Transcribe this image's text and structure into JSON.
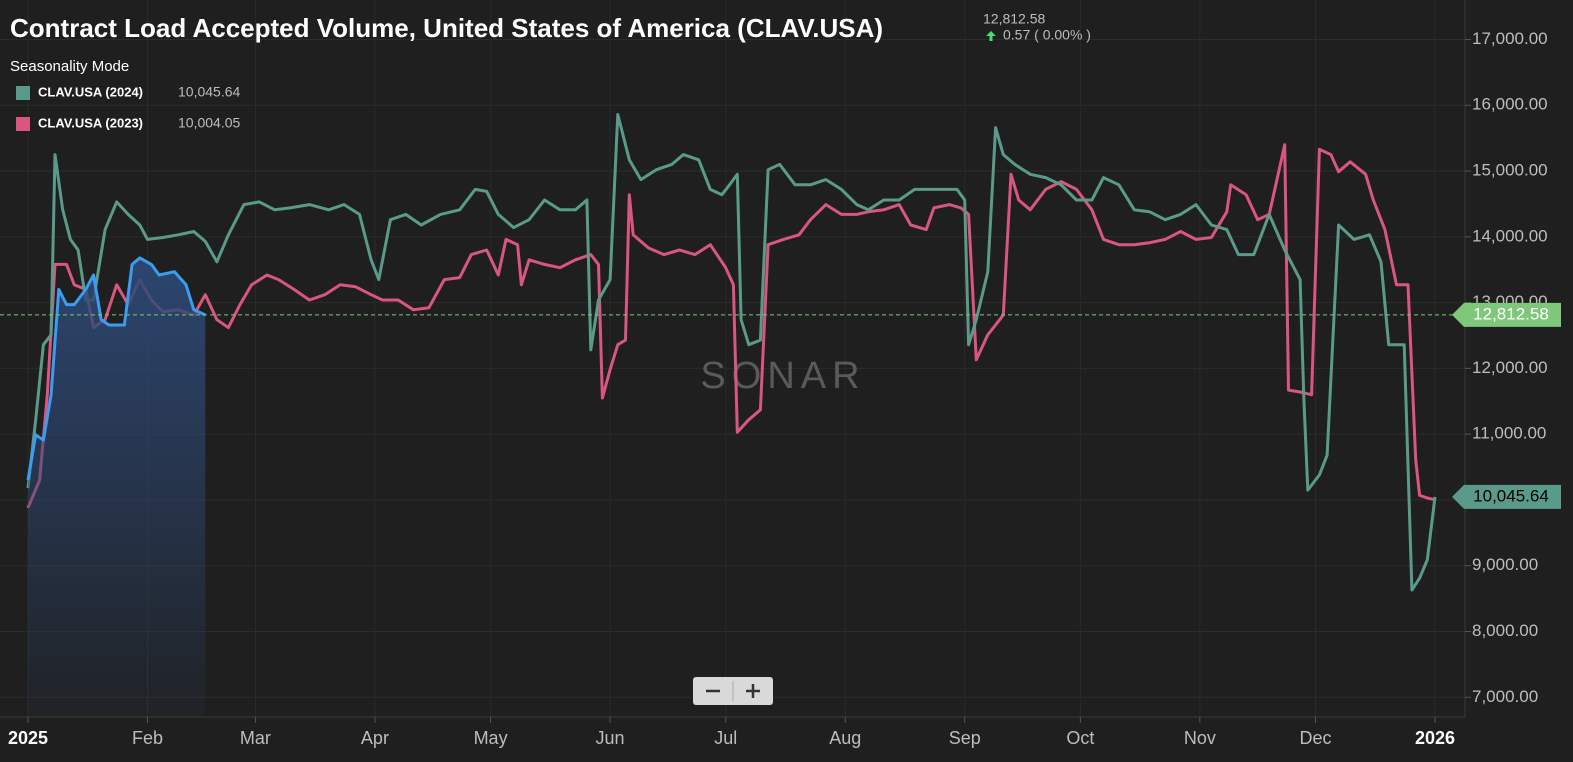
{
  "chart_data": {
    "type": "line",
    "title": "Contract Load Accepted Volume, United States of America (CLAV.USA)",
    "current_price": "12,812.58",
    "change": "0.57 ( 0.00% )",
    "mode_label": "Seasonality Mode",
    "watermark": "SONAR",
    "xlim": [
      0,
      365
    ],
    "xticks": [
      {
        "value": 0,
        "label": "2025"
      },
      {
        "value": 31,
        "label": "Feb"
      },
      {
        "value": 59,
        "label": "Mar"
      },
      {
        "value": 90,
        "label": "Apr"
      },
      {
        "value": 120,
        "label": "May"
      },
      {
        "value": 151,
        "label": "Jun"
      },
      {
        "value": 181,
        "label": "Jul"
      },
      {
        "value": 212,
        "label": "Aug"
      },
      {
        "value": 243,
        "label": "Sep"
      },
      {
        "value": 273,
        "label": "Oct"
      },
      {
        "value": 304,
        "label": "Nov"
      },
      {
        "value": 334,
        "label": "Dec"
      },
      {
        "value": 365,
        "label": "2026"
      }
    ],
    "ylim": [
      6700,
      17600
    ],
    "yticks": [
      {
        "value": 7000,
        "label": "7,000.00"
      },
      {
        "value": 8000,
        "label": "8,000.00"
      },
      {
        "value": 9000,
        "label": "9,000.00"
      },
      {
        "value": 10000,
        "label": "10,000.00"
      },
      {
        "value": 11000,
        "label": "11,000.00"
      },
      {
        "value": 12000,
        "label": "12,000.00"
      },
      {
        "value": 13000,
        "label": "13,000.00"
      },
      {
        "value": 14000,
        "label": "14,000.00"
      },
      {
        "value": 15000,
        "label": "15,000.00"
      },
      {
        "value": 16000,
        "label": "16,000.00"
      },
      {
        "value": 17000,
        "label": "17,000.00"
      }
    ],
    "grid": true,
    "reference_line": {
      "value": 12812.58,
      "label": "12,812.58",
      "color": "#7fc77a"
    },
    "series": [
      {
        "name": "CLAV.USA (2024)",
        "color": "#5a9a8a",
        "legend_value": "10,045.64",
        "show_badge": true,
        "x": [
          0,
          2,
          4,
          6,
          7,
          9,
          11,
          13,
          15,
          17,
          20,
          23,
          26,
          29,
          31,
          35,
          39,
          43,
          46,
          49,
          52,
          56,
          60,
          64,
          68,
          73,
          78,
          82,
          86,
          89,
          91,
          94,
          98,
          102,
          107,
          112,
          116,
          119,
          122,
          126,
          130,
          134,
          138,
          142,
          145,
          146,
          148,
          151,
          153,
          156,
          159,
          163,
          167,
          170,
          174,
          177,
          180,
          182,
          184,
          185,
          187,
          190,
          192,
          195,
          199,
          203,
          207,
          211,
          215,
          218,
          222,
          226,
          230,
          234,
          238,
          241,
          243,
          244,
          246,
          249,
          251,
          253,
          256,
          260,
          264,
          268,
          272,
          276,
          279,
          283,
          287,
          291,
          295,
          299,
          303,
          307,
          311,
          314,
          318,
          322,
          326,
          330,
          331,
          332,
          335,
          337,
          340,
          344,
          348,
          351,
          353,
          357,
          359,
          361,
          363,
          365
        ],
        "values": [
          10180,
          11220,
          12360,
          12510,
          15250,
          14410,
          13960,
          13800,
          13040,
          13040,
          14110,
          14530,
          14340,
          14180,
          13960,
          13990,
          14030,
          14080,
          13930,
          13620,
          14030,
          14490,
          14530,
          14410,
          14440,
          14490,
          14410,
          14490,
          14340,
          13650,
          13350,
          14260,
          14340,
          14180,
          14340,
          14410,
          14720,
          14690,
          14340,
          14140,
          14260,
          14560,
          14410,
          14410,
          14560,
          12280,
          13040,
          13350,
          15860,
          15170,
          14870,
          15020,
          15100,
          15250,
          15170,
          14720,
          14640,
          14790,
          14950,
          12740,
          12360,
          12430,
          15020,
          15100,
          14790,
          14790,
          14870,
          14720,
          14490,
          14410,
          14560,
          14560,
          14720,
          14720,
          14720,
          14720,
          14560,
          12360,
          12740,
          13470,
          15660,
          15250,
          15100,
          14950,
          14900,
          14790,
          14560,
          14560,
          14900,
          14790,
          14410,
          14380,
          14260,
          14340,
          14490,
          14180,
          14110,
          13730,
          13730,
          14340,
          13800,
          13350,
          11520,
          10150,
          10380,
          10680,
          14180,
          13960,
          14030,
          13620,
          12360,
          12360,
          8630,
          8810,
          9090,
          10045.64
        ]
      },
      {
        "name": "CLAV.USA (2023)",
        "color": "#d9567f",
        "legend_value": "10,004.05",
        "show_badge": false,
        "x": [
          0,
          3,
          5,
          7,
          10,
          12,
          15,
          17,
          20,
          23,
          26,
          29,
          32,
          35,
          39,
          43,
          46,
          49,
          52,
          55,
          58,
          62,
          65,
          69,
          73,
          77,
          81,
          85,
          89,
          92,
          96,
          100,
          104,
          108,
          112,
          115,
          119,
          122,
          124,
          127,
          128,
          130,
          134,
          138,
          142,
          146,
          148,
          149,
          151,
          153,
          155,
          156,
          157,
          161,
          165,
          169,
          173,
          177,
          181,
          183,
          184,
          187,
          190,
          192,
          196,
          200,
          203,
          207,
          211,
          215,
          218,
          222,
          226,
          229,
          233,
          235,
          239,
          242,
          244,
          246,
          249,
          253,
          255,
          257,
          260,
          264,
          268,
          272,
          276,
          279,
          283,
          287,
          291,
          295,
          299,
          303,
          307,
          311,
          312,
          316,
          319,
          322,
          324,
          326,
          327,
          330,
          333,
          335,
          338,
          340,
          343,
          347,
          349,
          352,
          355,
          358,
          360,
          361,
          363,
          365
        ],
        "values": [
          9880,
          10300,
          11600,
          13580,
          13580,
          13270,
          13200,
          12620,
          12740,
          13270,
          12970,
          13350,
          13040,
          12860,
          12890,
          12810,
          13120,
          12740,
          12620,
          12970,
          13270,
          13420,
          13350,
          13200,
          13040,
          13120,
          13270,
          13240,
          13120,
          13040,
          13040,
          12890,
          12920,
          13350,
          13380,
          13730,
          13800,
          13420,
          13960,
          13880,
          13270,
          13650,
          13580,
          13530,
          13650,
          13730,
          13580,
          11550,
          11980,
          12360,
          12430,
          14640,
          14030,
          13830,
          13730,
          13800,
          13730,
          13880,
          13530,
          13270,
          11030,
          11220,
          11370,
          13880,
          13960,
          14030,
          14260,
          14490,
          14340,
          14340,
          14380,
          14410,
          14490,
          14180,
          14110,
          14440,
          14490,
          14440,
          14340,
          12130,
          12510,
          12810,
          14950,
          14560,
          14410,
          14720,
          14840,
          14720,
          14410,
          13960,
          13880,
          13880,
          13910,
          13960,
          14080,
          13960,
          13990,
          14380,
          14790,
          14640,
          14260,
          14340,
          14870,
          15400,
          11670,
          11640,
          11600,
          15330,
          15250,
          14990,
          15140,
          14950,
          14560,
          14110,
          13270,
          13270,
          10610,
          10070,
          10030,
          10004.05
        ]
      },
      {
        "color": "#3b9cf0",
        "area": true,
        "x": [
          0,
          2,
          4,
          6,
          8,
          10,
          12,
          15,
          17,
          19,
          21,
          25,
          27,
          29,
          32,
          34,
          38,
          41,
          43,
          46
        ],
        "values": [
          10300,
          10990,
          10910,
          11600,
          13200,
          12970,
          12970,
          13200,
          13420,
          12740,
          12660,
          12660,
          13580,
          13680,
          13580,
          13420,
          13470,
          13270,
          12890,
          12812.58
        ]
      }
    ]
  }
}
